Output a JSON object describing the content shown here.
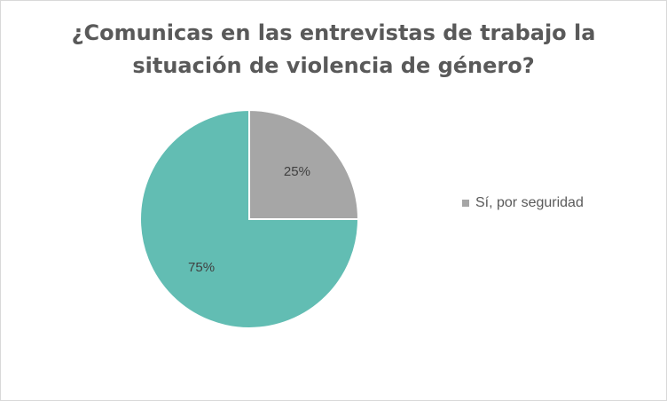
{
  "chart_data": {
    "type": "pie",
    "title_lines": [
      "¿Comunicas en las entrevistas de trabajo la",
      "situación de violencia de género?"
    ],
    "slices": [
      {
        "label": "Sí, por seguridad",
        "value": 25,
        "data_label": "25%",
        "color": "#a6a6a6"
      },
      {
        "label": "",
        "value": 75,
        "data_label": "75%",
        "color": "#62bdb3"
      }
    ],
    "legend": {
      "position": "right",
      "entries": [
        "Sí, por seguridad"
      ]
    }
  }
}
